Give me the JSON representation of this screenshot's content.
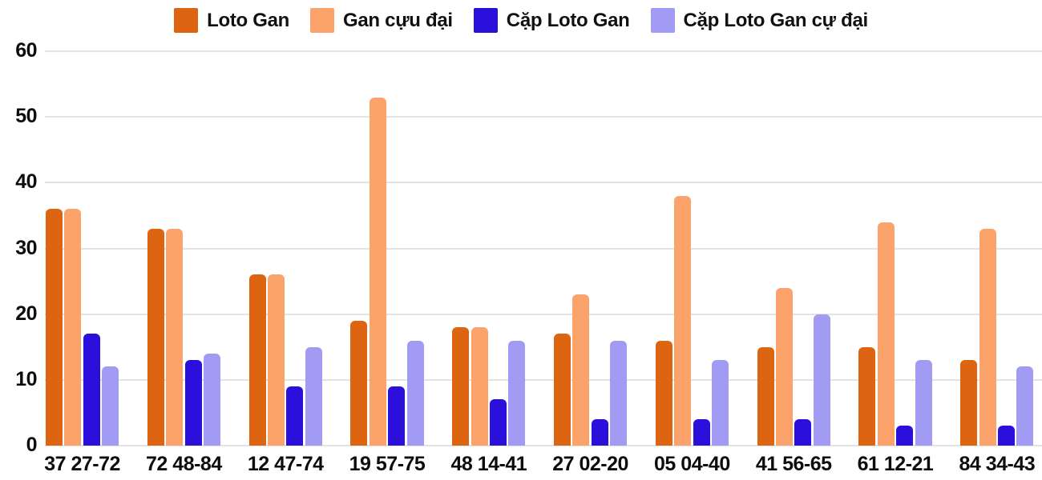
{
  "chart_data": {
    "type": "bar",
    "title": "",
    "xlabel": "",
    "ylabel": "",
    "categories": [
      "37 27-72",
      "72 48-84",
      "12 47-74",
      "19 57-75",
      "48 14-41",
      "27 02-20",
      "05 04-40",
      "41 56-65",
      "61 12-21",
      "84 34-43"
    ],
    "series": [
      {
        "name": "Loto Gan",
        "color": "#dd6512",
        "values": [
          36,
          33,
          26,
          19,
          18,
          17,
          16,
          15,
          15,
          13
        ]
      },
      {
        "name": "Gan cựu đại",
        "color": "#fca36b",
        "values": [
          36,
          33,
          26,
          53,
          18,
          23,
          38,
          24,
          34,
          33
        ]
      },
      {
        "name": "Cặp Loto Gan",
        "color": "#2b10db",
        "values": [
          17,
          13,
          9,
          9,
          7,
          4,
          4,
          4,
          3,
          3
        ]
      },
      {
        "name": "Cặp Loto Gan cự đại",
        "color": "#a29bf4",
        "values": [
          12,
          14,
          15,
          16,
          16,
          16,
          13,
          20,
          13,
          12
        ]
      }
    ],
    "ylim": [
      0,
      60
    ],
    "yticks": [
      0,
      10,
      20,
      30,
      40,
      50,
      60
    ],
    "grid": "horizontal-only",
    "gridline_color": "#e3e3e3",
    "legend_position": "top-center",
    "text_color": "#0d0d0d",
    "background_color": "#ffffff"
  }
}
